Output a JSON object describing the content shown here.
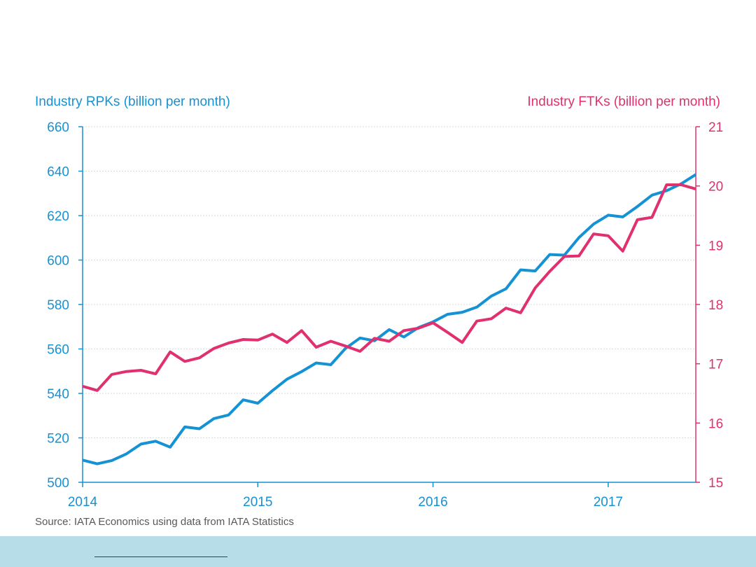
{
  "colors": {
    "rpk": "#1592d4",
    "ftk": "#e0306f",
    "grid": "#d9d9d9",
    "source_text": "#595959",
    "footer_band": "#b7dde8"
  },
  "source_note": "Source: IATA Economics using data from IATA Statistics",
  "chart_data": {
    "type": "line",
    "title": "",
    "xlabel": "",
    "x_ticks": [
      "2014",
      "2015",
      "2016",
      "2017"
    ],
    "x_range": [
      "2014-01",
      "2017-07"
    ],
    "left_axis": {
      "label": "Industry RPKs (billion per month)",
      "ylim": [
        500,
        660
      ],
      "ticks": [
        500,
        520,
        540,
        560,
        580,
        600,
        620,
        640,
        660
      ]
    },
    "right_axis": {
      "label": "Industry FTKs (billion per month)",
      "ylim": [
        15,
        21
      ],
      "ticks": [
        15,
        16,
        17,
        18,
        19,
        20,
        21
      ]
    },
    "grid": true,
    "legend": "none",
    "months": [
      "2014-01",
      "2014-02",
      "2014-03",
      "2014-04",
      "2014-05",
      "2014-06",
      "2014-07",
      "2014-08",
      "2014-09",
      "2014-10",
      "2014-11",
      "2014-12",
      "2015-01",
      "2015-02",
      "2015-03",
      "2015-04",
      "2015-05",
      "2015-06",
      "2015-07",
      "2015-08",
      "2015-09",
      "2015-10",
      "2015-11",
      "2015-12",
      "2016-01",
      "2016-02",
      "2016-03",
      "2016-04",
      "2016-05",
      "2016-06",
      "2016-07",
      "2016-08",
      "2016-09",
      "2016-10",
      "2016-11",
      "2016-12",
      "2017-01",
      "2017-02",
      "2017-03",
      "2017-04",
      "2017-05",
      "2017-06",
      "2017-07"
    ],
    "series": [
      {
        "axis": "left",
        "values": [
          510,
          508.3,
          509.8,
          512.8,
          517.2,
          518.5,
          515.8,
          524.9,
          524.1,
          528.7,
          530.3,
          537.1,
          535.6,
          541.2,
          546.4,
          549.8,
          553.7,
          552.9,
          560.2,
          564.9,
          563.7,
          568.7,
          565.4,
          569.6,
          572.2,
          575.6,
          576.5,
          578.8,
          583.8,
          587.1,
          595.6,
          595.1,
          602.5,
          602.2,
          610.1,
          616.2,
          620.2,
          619.4,
          624.1,
          629.2,
          631.2,
          634.3,
          638.5
        ]
      },
      {
        "axis": "right",
        "values": [
          16.62,
          16.55,
          16.82,
          16.87,
          16.89,
          16.83,
          17.2,
          17.04,
          17.1,
          17.26,
          17.35,
          17.41,
          17.4,
          17.5,
          17.36,
          17.56,
          17.28,
          17.38,
          17.3,
          17.21,
          17.43,
          17.38,
          17.56,
          17.6,
          17.69,
          17.53,
          17.36,
          17.72,
          17.76,
          17.94,
          17.86,
          18.28,
          18.56,
          18.81,
          18.82,
          19.19,
          19.16,
          18.9,
          19.43,
          19.47,
          20.02,
          20.02,
          19.95
        ]
      }
    ]
  }
}
